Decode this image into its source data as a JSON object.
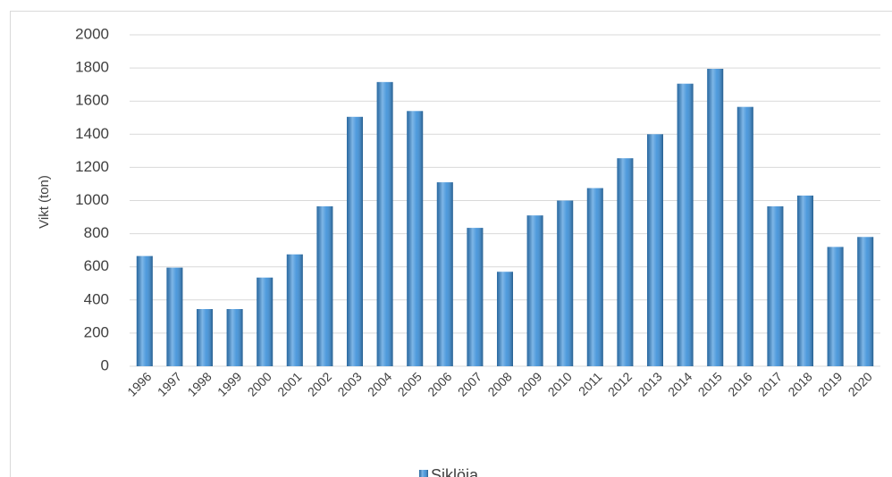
{
  "chart_data": {
    "type": "bar",
    "y_label": "Vikt (ton)",
    "categories": [
      "1996",
      "1997",
      "1998",
      "1999",
      "2000",
      "2001",
      "2002",
      "2003",
      "2004",
      "2005",
      "2006",
      "2007",
      "2008",
      "2009",
      "2010",
      "2011",
      "2012",
      "2013",
      "2014",
      "2015",
      "2016",
      "2017",
      "2018",
      "2019",
      "2020"
    ],
    "series": [
      {
        "name": "Siklöja",
        "color": "#3a8fd9",
        "values": [
          665,
          595,
          345,
          345,
          535,
          675,
          965,
          1505,
          1715,
          1540,
          1110,
          835,
          570,
          910,
          1000,
          1075,
          1255,
          1400,
          1705,
          1795,
          1565,
          965,
          1030,
          720,
          780
        ]
      }
    ],
    "ylim": [
      0,
      2000
    ],
    "yticks": [
      0,
      200,
      400,
      600,
      800,
      1000,
      1200,
      1400,
      1600,
      1800,
      2000
    ],
    "grid": true,
    "legend": "bottom"
  }
}
